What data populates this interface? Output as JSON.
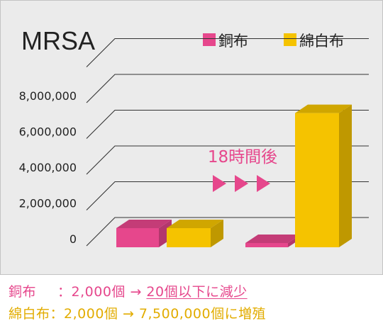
{
  "chart_data": {
    "type": "bar",
    "title": "MRSA",
    "categories": [
      "",
      ""
    ],
    "series": [
      {
        "name": "銅布",
        "color": "#e6478c",
        "values": [
          2000,
          20
        ]
      },
      {
        "name": "綿白布",
        "color": "#f5c300",
        "values": [
          2000,
          7500000
        ]
      }
    ],
    "y_ticks": [
      "0",
      "2,000,000",
      "4,000,000",
      "6,000,000",
      "8,000,000"
    ],
    "y_tick_values": [
      0,
      2000000,
      4000000,
      6000000,
      8000000
    ],
    "ylim": [
      0,
      8000000
    ],
    "grid": true,
    "legend_position": "top-right",
    "annotation": "18時間後",
    "annotation_arrow_color": "#e6478c"
  },
  "captions": {
    "line1": {
      "label": "銅布",
      "text": "：2,000個 → ",
      "result": "20個以下に減少"
    },
    "line2": {
      "label": "綿白布",
      "text": "：2,000個 → 7,500,000個に増殖"
    }
  },
  "colors": {
    "background": "#ebebeb",
    "frame": "#c3c3c3",
    "grid": "#333333"
  }
}
